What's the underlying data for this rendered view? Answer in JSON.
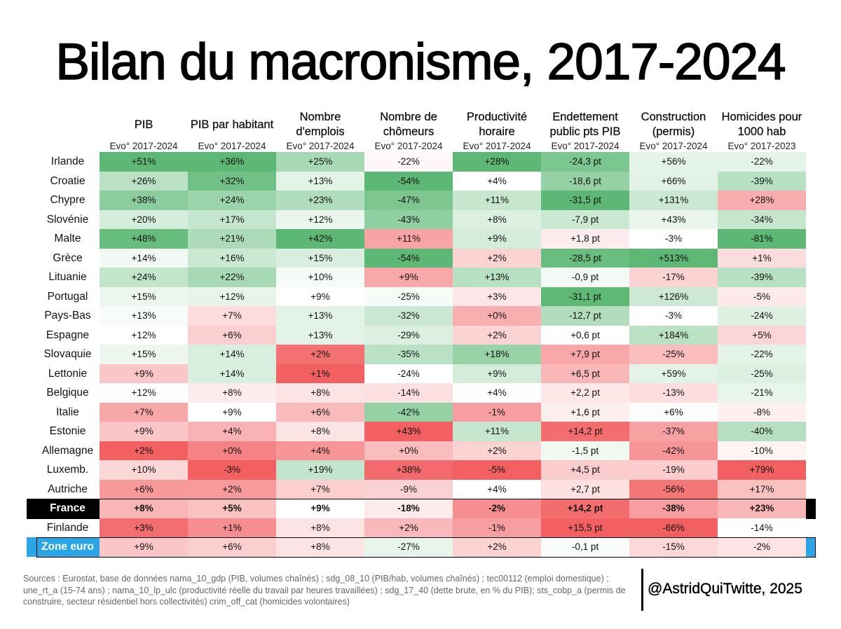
{
  "title": "Bilan du macronisme, 2017-2024",
  "chart_data": {
    "type": "table",
    "title": "Bilan du macronisme, 2017-2024",
    "columns": [
      {
        "label": "PIB",
        "sub": "Evo° 2017-2024"
      },
      {
        "label": "PIB par habitant",
        "sub": "Evo° 2017-2024"
      },
      {
        "label": "Nombre d'emplois",
        "sub": "Evo° 2017-2024"
      },
      {
        "label": "Nombre de chômeurs",
        "sub": "Evo° 2017-2024"
      },
      {
        "label": "Productivité horaire",
        "sub": "Evo° 2017-2024"
      },
      {
        "label": "Endettement public pts PIB",
        "sub": "Evo° 2017-2024"
      },
      {
        "label": "Construction (permis)",
        "sub": "Evo° 2017-2024"
      },
      {
        "label": "Homicides pour 1000 hab",
        "sub": "Evo° 2017-2023"
      }
    ],
    "rows": [
      {
        "country": "Irlande",
        "values": [
          "+51%",
          "+36%",
          "+25%",
          "-22%",
          "+28%",
          "-24,3 pt",
          "+56%",
          "-22%"
        ]
      },
      {
        "country": "Croatie",
        "values": [
          "+26%",
          "+32%",
          "+13%",
          "-54%",
          "+4%",
          "-18,6 pt",
          "+66%",
          "-39%"
        ]
      },
      {
        "country": "Chypre",
        "values": [
          "+38%",
          "+24%",
          "+23%",
          "-47%",
          "+11%",
          "-31,5 pt",
          "+131%",
          "+28%"
        ]
      },
      {
        "country": "Slovénie",
        "values": [
          "+20%",
          "+17%",
          "+12%",
          "-43%",
          "+8%",
          "-7,9 pt",
          "+43%",
          "-34%"
        ]
      },
      {
        "country": "Malte",
        "values": [
          "+48%",
          "+21%",
          "+42%",
          "+11%",
          "+9%",
          "+1,8 pt",
          "-3%",
          "-81%"
        ]
      },
      {
        "country": "Grèce",
        "values": [
          "+14%",
          "+16%",
          "+15%",
          "-54%",
          "+2%",
          "-28,5 pt",
          "+513%",
          "+1%"
        ]
      },
      {
        "country": "Lituanie",
        "values": [
          "+24%",
          "+22%",
          "+10%",
          "+9%",
          "+13%",
          "-0,9 pt",
          "-17%",
          "-39%"
        ]
      },
      {
        "country": "Portugal",
        "values": [
          "+15%",
          "+12%",
          "+9%",
          "-25%",
          "+3%",
          "-31,1 pt",
          "+126%",
          "-5%"
        ]
      },
      {
        "country": "Pays-Bas",
        "values": [
          "+13%",
          "+7%",
          "+13%",
          "-32%",
          "+0%",
          "-12,7 pt",
          "-3%",
          "-24%"
        ]
      },
      {
        "country": "Espagne",
        "values": [
          "+12%",
          "+6%",
          "+13%",
          "-29%",
          "+2%",
          "+0,6 pt",
          "+184%",
          "+5%"
        ]
      },
      {
        "country": "Slovaquie",
        "values": [
          "+15%",
          "+14%",
          "+2%",
          "-35%",
          "+18%",
          "+7,9 pt",
          "-25%",
          "-22%"
        ]
      },
      {
        "country": "Lettonie",
        "values": [
          "+9%",
          "+14%",
          "+1%",
          "-24%",
          "+9%",
          "+6,5 pt",
          "+59%",
          "-25%"
        ]
      },
      {
        "country": "Belgique",
        "values": [
          "+12%",
          "+8%",
          "+8%",
          "-14%",
          "+4%",
          "+2,2 pt",
          "-13%",
          "-21%"
        ]
      },
      {
        "country": "Italie",
        "values": [
          "+7%",
          "+9%",
          "+6%",
          "-42%",
          "-1%",
          "+1,6 pt",
          "+6%",
          "-8%"
        ]
      },
      {
        "country": "Estonie",
        "values": [
          "+9%",
          "+4%",
          "+8%",
          "+43%",
          "+11%",
          "+14,2 pt",
          "-37%",
          "-40%"
        ]
      },
      {
        "country": "Allemagne",
        "values": [
          "+2%",
          "+0%",
          "+4%",
          "+0%",
          "+2%",
          "-1,5 pt",
          "-42%",
          "-10%"
        ]
      },
      {
        "country": "Luxemb.",
        "values": [
          "+10%",
          "-3%",
          "+19%",
          "+38%",
          "-5%",
          "+4,5 pt",
          "-19%",
          "+79%"
        ]
      },
      {
        "country": "Autriche",
        "values": [
          "+6%",
          "+2%",
          "+7%",
          "-9%",
          "+4%",
          "+2,7 pt",
          "-56%",
          "+17%"
        ]
      },
      {
        "country": "France",
        "values": [
          "+8%",
          "+5%",
          "+9%",
          "-18%",
          "-2%",
          "+14,2 pt",
          "-38%",
          "+23%"
        ]
      },
      {
        "country": "Finlande",
        "values": [
          "+3%",
          "+1%",
          "+8%",
          "+2%",
          "-1%",
          "+15,5 pt",
          "-66%",
          "-14%"
        ]
      },
      {
        "country": "Zone euro",
        "values": [
          "+9%",
          "+6%",
          "+8%",
          "-27%",
          "+2%",
          "-0,1 pt",
          "-15%",
          "-2%"
        ]
      }
    ],
    "highlight_rows": [
      "France",
      "Zone euro"
    ],
    "colors": {
      "good_strong": "#5cb874",
      "neutral": "#ffffff",
      "bad_strong": "#f26062",
      "france_band": "#000000",
      "euro_band": "#2aa6e6",
      "euro_text": "#ffffff"
    }
  },
  "footer": {
    "sources": "Sources : Eurostat, base de données nama_10_gdp (PIB, volumes chaînés) ; sdg_08_10 (PIB/hab, volumes chaînés) ; tec00112 (emploi domestique) ; une_rt_a (15-74 ans) ; nama_10_lp_ulc (productivité réelle du travail par heures travaillées) ; sdg_17_40 (dette brute, en % du PIB); sts_cobp_a (permis de construire, secteur résidentiel hors collectivités) crim_off_cat (homicides volontaires)",
    "credit": "@AstridQuiTwitte, 2025"
  }
}
